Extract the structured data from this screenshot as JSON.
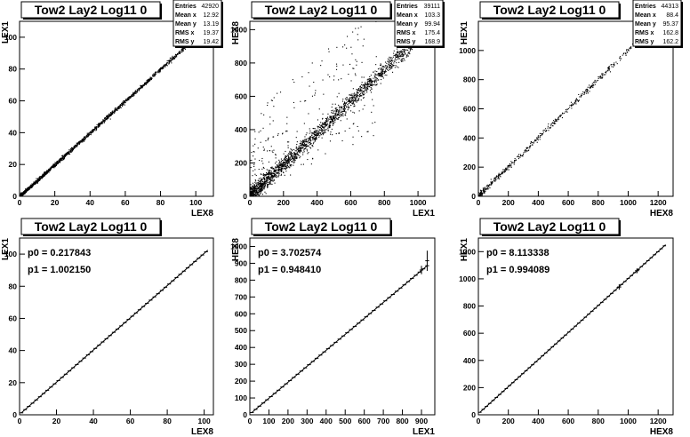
{
  "chart_data": [
    {
      "type": "scatter",
      "title": "Tow2 Lay2 Log11 0",
      "xlabel": "LEX8",
      "ylabel": "LEX1",
      "xlim": [
        0,
        110
      ],
      "ylim": [
        0,
        110
      ],
      "xticks": [
        0,
        20,
        40,
        60,
        80,
        100
      ],
      "yticks": [
        0,
        20,
        40,
        60,
        80,
        100
      ],
      "stats": [
        {
          "label": "Entries",
          "value": "42920"
        },
        {
          "label": "Mean x",
          "value": "12.92"
        },
        {
          "label": "Mean y",
          "value": "13.19"
        },
        {
          "label": "RMS x",
          "value": "19.37"
        },
        {
          "label": "RMS y",
          "value": "19.42"
        }
      ],
      "relation": {
        "slope": 1.0,
        "intercept": 0.2,
        "x_range": [
          0,
          105
        ],
        "spread": 0.6
      }
    },
    {
      "type": "scatter",
      "title": "Tow2 Lay2 Log11 0",
      "xlabel": "LEX1",
      "ylabel": "HEX8",
      "xlim": [
        0,
        1100
      ],
      "ylim": [
        0,
        1050
      ],
      "xticks": [
        0,
        200,
        400,
        600,
        800,
        1000
      ],
      "yticks": [
        0,
        200,
        400,
        600,
        800,
        1000
      ],
      "stats": [
        {
          "label": "Entries",
          "value": "39111"
        },
        {
          "label": "Mean x",
          "value": "103.3"
        },
        {
          "label": "Mean y",
          "value": "99.94"
        },
        {
          "label": "RMS x",
          "value": "175.4"
        },
        {
          "label": "RMS y",
          "value": "168.9"
        }
      ],
      "relation": {
        "slope": 0.95,
        "intercept": 3.7,
        "x_range": [
          0,
          1000
        ],
        "spread": 25,
        "outliers": 0.12
      }
    },
    {
      "type": "scatter",
      "title": "Tow2 Lay2 Log11 0",
      "xlabel": "HEX8",
      "ylabel": "HEX1",
      "xlim": [
        0,
        1300
      ],
      "ylim": [
        0,
        1200
      ],
      "xticks": [
        0,
        200,
        400,
        600,
        800,
        1000,
        1200
      ],
      "yticks": [
        0,
        200,
        400,
        600,
        800,
        1000
      ],
      "stats": [
        {
          "label": "Entries",
          "value": "44313"
        },
        {
          "label": "Mean x",
          "value": "88.4"
        },
        {
          "label": "Mean y",
          "value": "95.37"
        },
        {
          "label": "RMS x",
          "value": "162.8"
        },
        {
          "label": "RMS y",
          "value": "162.2"
        }
      ],
      "relation": {
        "slope": 1.0,
        "intercept": 8.0,
        "x_range": [
          0,
          1070
        ],
        "spread": 10
      }
    },
    {
      "type": "line",
      "title": "Tow2 Lay2 Log11 0",
      "xlabel": "LEX8",
      "ylabel": "LEX1",
      "xlim": [
        0,
        105
      ],
      "ylim": [
        0,
        110
      ],
      "xticks": [
        0,
        20,
        40,
        60,
        80,
        100
      ],
      "yticks": [
        0,
        20,
        40,
        60,
        80,
        100
      ],
      "fit_params": [
        "p0 = 0.217843",
        "p1 = 1.002150"
      ],
      "fit": {
        "p0": 0.217843,
        "p1": 1.00215
      },
      "profile": {
        "x_start": 1,
        "x_end": 102,
        "step": 2
      }
    },
    {
      "type": "line",
      "title": "Tow2 Lay2 Log11 0",
      "xlabel": "LEX1",
      "ylabel": "HEX8",
      "xlim": [
        0,
        970
      ],
      "ylim": [
        0,
        1050
      ],
      "xticks": [
        0,
        100,
        200,
        300,
        400,
        500,
        600,
        700,
        800,
        900
      ],
      "yticks": [
        0,
        100,
        200,
        300,
        400,
        500,
        600,
        700,
        800,
        900,
        1000
      ],
      "fit_params": [
        "p0 = 3.702574",
        "p1 = 0.948410"
      ],
      "fit": {
        "p0": 3.702574,
        "p1": 0.94841
      },
      "profile": {
        "x_start": 10,
        "x_end": 930,
        "step": 20
      }
    },
    {
      "type": "line",
      "title": "Tow2 Lay2 Log11 0",
      "xlabel": "HEX8",
      "ylabel": "HEX1",
      "xlim": [
        0,
        1300
      ],
      "ylim": [
        0,
        1300
      ],
      "xticks": [
        0,
        200,
        400,
        600,
        800,
        1000,
        1200
      ],
      "yticks": [
        0,
        200,
        400,
        600,
        800,
        1000,
        1200
      ],
      "fit_params": [
        "p0 = 8.113338",
        "p1 = 0.994089"
      ],
      "fit": {
        "p0": 8.113338,
        "p1": 0.994089
      },
      "profile": {
        "x_start": 10,
        "x_end": 1250,
        "step": 22
      }
    }
  ]
}
